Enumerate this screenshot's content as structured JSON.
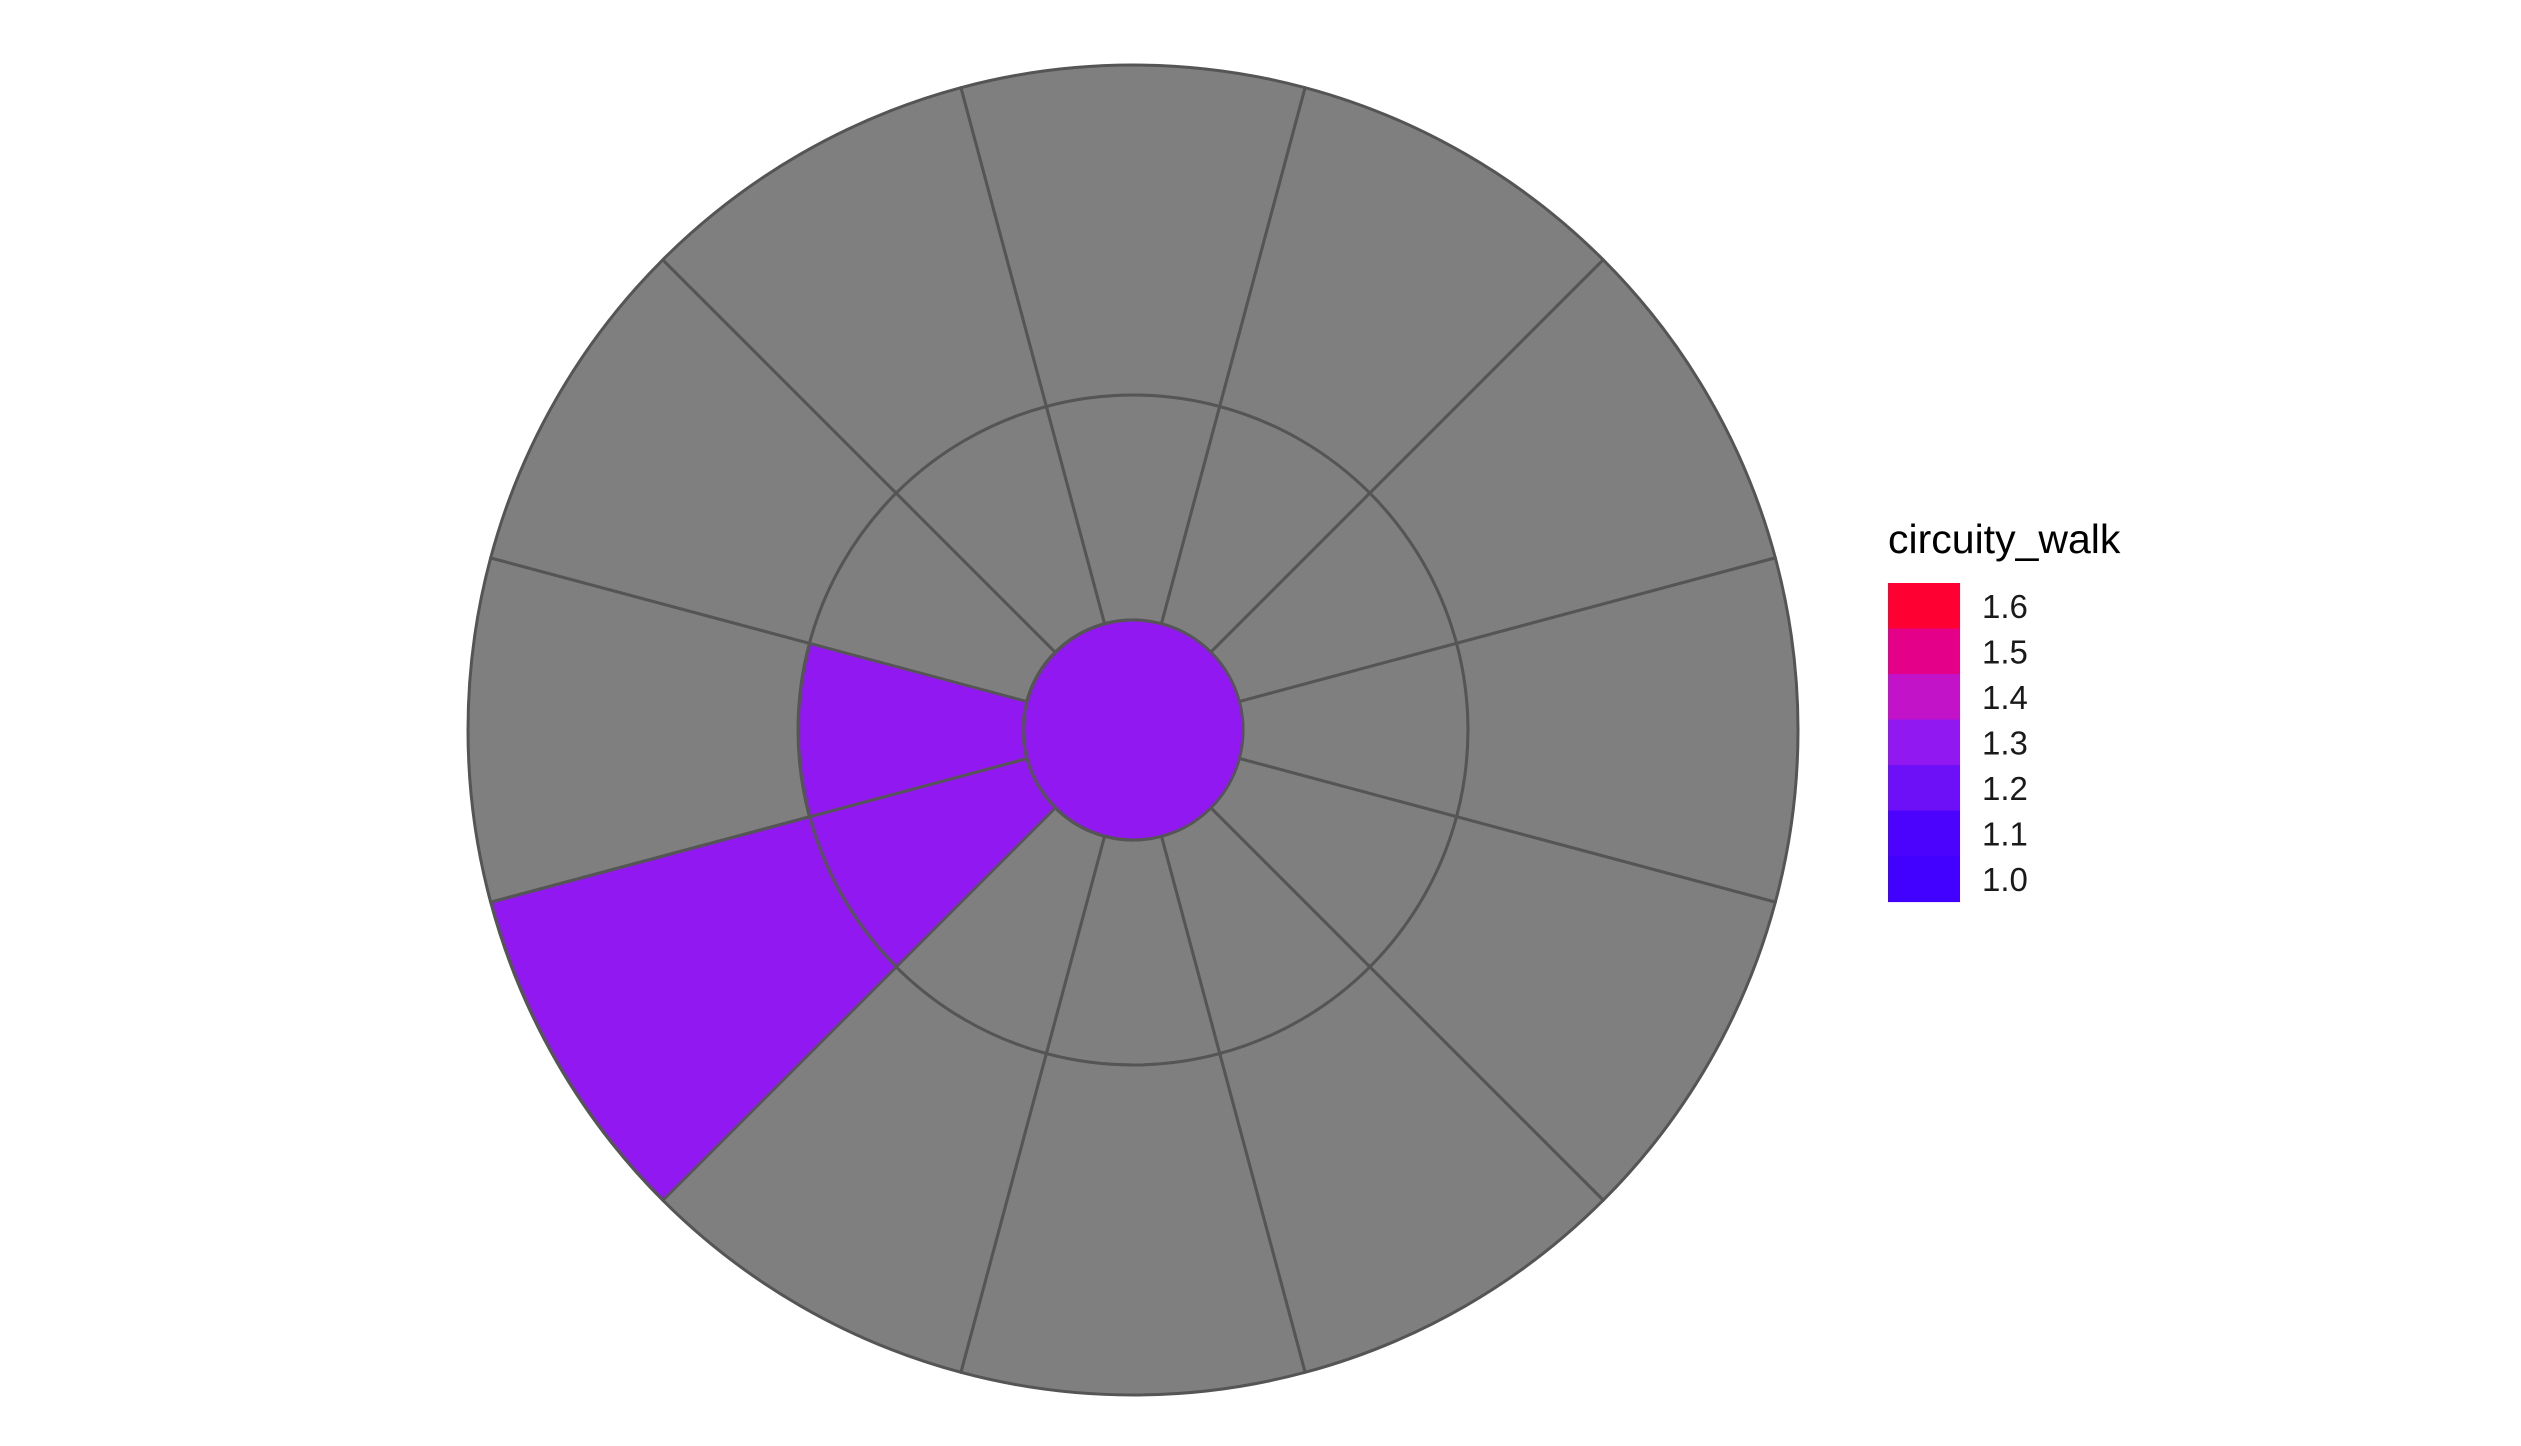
{
  "chart_data": {
    "type": "polar",
    "sectors": 12,
    "rings": 3,
    "cells": [
      {
        "ring": 1,
        "sector": 0,
        "value": 1.25
      },
      {
        "ring": 1,
        "sector": 1,
        "value": 1.25
      },
      {
        "ring": 1,
        "sector": 2,
        "value": 1.25
      },
      {
        "ring": 1,
        "sector": 3,
        "value": 1.25
      },
      {
        "ring": 1,
        "sector": 4,
        "value": 1.25
      },
      {
        "ring": 1,
        "sector": 5,
        "value": 1.25
      },
      {
        "ring": 1,
        "sector": 6,
        "value": 1.25
      },
      {
        "ring": 1,
        "sector": 7,
        "value": 1.25
      },
      {
        "ring": 1,
        "sector": 8,
        "value": 1.25
      },
      {
        "ring": 1,
        "sector": 9,
        "value": 1.25
      },
      {
        "ring": 1,
        "sector": 10,
        "value": 1.25
      },
      {
        "ring": 1,
        "sector": 11,
        "value": 1.25
      },
      {
        "ring": 2,
        "sector": 0,
        "value": null
      },
      {
        "ring": 2,
        "sector": 1,
        "value": null
      },
      {
        "ring": 2,
        "sector": 2,
        "value": null
      },
      {
        "ring": 2,
        "sector": 3,
        "value": null
      },
      {
        "ring": 2,
        "sector": 4,
        "value": null
      },
      {
        "ring": 2,
        "sector": 5,
        "value": null
      },
      {
        "ring": 2,
        "sector": 6,
        "value": null
      },
      {
        "ring": 2,
        "sector": 7,
        "value": null
      },
      {
        "ring": 2,
        "sector": 8,
        "value": 1.25
      },
      {
        "ring": 2,
        "sector": 9,
        "value": 1.25
      },
      {
        "ring": 2,
        "sector": 10,
        "value": null
      },
      {
        "ring": 2,
        "sector": 11,
        "value": null
      },
      {
        "ring": 3,
        "sector": 0,
        "value": null
      },
      {
        "ring": 3,
        "sector": 1,
        "value": null
      },
      {
        "ring": 3,
        "sector": 2,
        "value": null
      },
      {
        "ring": 3,
        "sector": 3,
        "value": null
      },
      {
        "ring": 3,
        "sector": 4,
        "value": null
      },
      {
        "ring": 3,
        "sector": 5,
        "value": null
      },
      {
        "ring": 3,
        "sector": 6,
        "value": null
      },
      {
        "ring": 3,
        "sector": 7,
        "value": null
      },
      {
        "ring": 3,
        "sector": 8,
        "value": 1.25
      },
      {
        "ring": 3,
        "sector": 9,
        "value": null
      },
      {
        "ring": 3,
        "sector": 10,
        "value": null
      },
      {
        "ring": 3,
        "sector": 11,
        "value": null
      }
    ],
    "missing_color": "#7f7f7f",
    "outline_color": "#555555",
    "legend": {
      "title": "circuity_walk",
      "placement": "right",
      "type": "binned-colorbar",
      "labels": [
        "1.6",
        "1.5",
        "1.4",
        "1.3",
        "1.2",
        "1.1",
        "1.0"
      ],
      "range": [
        0.95,
        1.65
      ],
      "bin_colors": [
        "#ff0033",
        "#e5008a",
        "#c213c8",
        "#9218f2",
        "#6e10f7",
        "#4c03fd",
        "#4200ff"
      ]
    }
  }
}
